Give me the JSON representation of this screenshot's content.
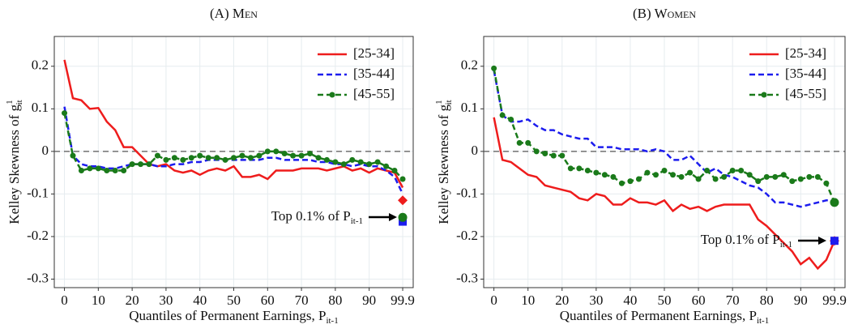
{
  "chart_data": [
    {
      "type": "line",
      "title": "(A) Men",
      "ylabel": {
        "text": "Kelley Skewness of g",
        "sup": "1",
        "sub": "it"
      },
      "xlabel": {
        "text": "Quantiles of Permanent Earnings, P",
        "sub": "it-1"
      },
      "annotation": {
        "text": "Top 0.1% of P",
        "sub": "it-1"
      },
      "x": [
        0,
        2.5,
        5,
        7.5,
        10,
        12.5,
        15,
        17.5,
        20,
        22.5,
        25,
        27.5,
        30,
        32.5,
        35,
        37.5,
        40,
        42.5,
        45,
        47.5,
        50,
        52.5,
        55,
        57.5,
        60,
        62.5,
        65,
        67.5,
        70,
        72.5,
        75,
        77.5,
        80,
        82.5,
        85,
        87.5,
        90,
        92.5,
        95,
        97.5,
        99.9
      ],
      "xlim": [
        -3,
        103
      ],
      "xticks": [
        0,
        10,
        20,
        30,
        40,
        50,
        60,
        70,
        80,
        90,
        99.9
      ],
      "ylim": [
        -0.32,
        0.27
      ],
      "yticks": [
        -0.3,
        -0.2,
        -0.1,
        0,
        0.1,
        0.2
      ],
      "grid": true,
      "hline": 0,
      "legend": "top-right",
      "series": [
        {
          "name": "[25-34]",
          "color": "#ee1c1c",
          "dash": false,
          "points": false,
          "marker": "diamond",
          "top": -0.115,
          "values": [
            0.215,
            0.125,
            0.12,
            0.1,
            0.102,
            0.07,
            0.05,
            0.01,
            0.01,
            -0.01,
            -0.03,
            -0.035,
            -0.03,
            -0.045,
            -0.05,
            -0.045,
            -0.055,
            -0.045,
            -0.04,
            -0.045,
            -0.035,
            -0.06,
            -0.06,
            -0.055,
            -0.065,
            -0.045,
            -0.045,
            -0.045,
            -0.04,
            -0.04,
            -0.04,
            -0.045,
            -0.04,
            -0.035,
            -0.045,
            -0.04,
            -0.05,
            -0.04,
            -0.045,
            -0.05,
            -0.085
          ]
        },
        {
          "name": "[35-44]",
          "color": "#1c1cee",
          "dash": true,
          "points": false,
          "marker": "square",
          "top": -0.165,
          "values": [
            0.105,
            -0.01,
            -0.03,
            -0.035,
            -0.035,
            -0.04,
            -0.04,
            -0.035,
            -0.03,
            -0.03,
            -0.03,
            -0.035,
            -0.035,
            -0.03,
            -0.03,
            -0.025,
            -0.025,
            -0.02,
            -0.02,
            -0.02,
            -0.02,
            -0.02,
            -0.02,
            -0.02,
            -0.015,
            -0.015,
            -0.02,
            -0.02,
            -0.02,
            -0.02,
            -0.025,
            -0.025,
            -0.03,
            -0.03,
            -0.035,
            -0.03,
            -0.035,
            -0.035,
            -0.045,
            -0.06,
            -0.1
          ]
        },
        {
          "name": "[45-55]",
          "color": "#1a7a1a",
          "dash": true,
          "points": true,
          "marker": "circle",
          "top": -0.155,
          "values": [
            0.09,
            -0.01,
            -0.045,
            -0.04,
            -0.04,
            -0.045,
            -0.045,
            -0.045,
            -0.03,
            -0.03,
            -0.03,
            -0.01,
            -0.02,
            -0.015,
            -0.02,
            -0.015,
            -0.01,
            -0.015,
            -0.015,
            -0.02,
            -0.015,
            -0.01,
            -0.015,
            -0.01,
            0,
            0,
            -0.005,
            -0.01,
            -0.01,
            -0.005,
            -0.015,
            -0.02,
            -0.025,
            -0.03,
            -0.02,
            -0.025,
            -0.03,
            -0.025,
            -0.035,
            -0.045,
            -0.065
          ]
        }
      ]
    },
    {
      "type": "line",
      "title": "(B) Women",
      "ylabel": {
        "text": "Kelley Skewness of g",
        "sup": "1",
        "sub": "it"
      },
      "xlabel": {
        "text": "Quantiles of Permanent Earnings, P",
        "sub": "it-1"
      },
      "annotation": {
        "text": "Top 0.1% of P",
        "sub": "it-1"
      },
      "x": [
        0,
        2.5,
        5,
        7.5,
        10,
        12.5,
        15,
        17.5,
        20,
        22.5,
        25,
        27.5,
        30,
        32.5,
        35,
        37.5,
        40,
        42.5,
        45,
        47.5,
        50,
        52.5,
        55,
        57.5,
        60,
        62.5,
        65,
        67.5,
        70,
        72.5,
        75,
        77.5,
        80,
        82.5,
        85,
        87.5,
        90,
        92.5,
        95,
        97.5,
        99.9
      ],
      "xlim": [
        -3,
        103
      ],
      "xticks": [
        0,
        10,
        20,
        30,
        40,
        50,
        60,
        70,
        80,
        90,
        99.9
      ],
      "ylim": [
        -0.32,
        0.27
      ],
      "yticks": [
        -0.3,
        -0.2,
        -0.1,
        0,
        0.1,
        0.2
      ],
      "grid": true,
      "hline": 0,
      "legend": "top-right",
      "series": [
        {
          "name": "[25-34]",
          "color": "#ee1c1c",
          "dash": false,
          "points": false,
          "marker": "diamond",
          "top": -0.21,
          "values": [
            0.08,
            -0.02,
            -0.025,
            -0.04,
            -0.055,
            -0.06,
            -0.08,
            -0.085,
            -0.09,
            -0.095,
            -0.11,
            -0.115,
            -0.1,
            -0.105,
            -0.125,
            -0.125,
            -0.11,
            -0.12,
            -0.12,
            -0.125,
            -0.115,
            -0.14,
            -0.125,
            -0.135,
            -0.13,
            -0.14,
            -0.13,
            -0.125,
            -0.125,
            -0.125,
            -0.125,
            -0.16,
            -0.175,
            -0.195,
            -0.215,
            -0.235,
            -0.265,
            -0.25,
            -0.275,
            -0.255,
            -0.21
          ]
        },
        {
          "name": "[35-44]",
          "color": "#1c1cee",
          "dash": true,
          "points": false,
          "marker": "square",
          "top": -0.21,
          "values": [
            0.19,
            0.085,
            0.07,
            0.07,
            0.075,
            0.06,
            0.05,
            0.05,
            0.04,
            0.035,
            0.03,
            0.03,
            0.01,
            0.01,
            0.01,
            0.005,
            0.005,
            0.005,
            0,
            0.005,
            0,
            -0.02,
            -0.02,
            -0.01,
            -0.03,
            -0.05,
            -0.04,
            -0.055,
            -0.06,
            -0.07,
            -0.08,
            -0.085,
            -0.1,
            -0.12,
            -0.12,
            -0.125,
            -0.13,
            -0.125,
            -0.12,
            -0.115,
            -0.115
          ]
        },
        {
          "name": "[45-55]",
          "color": "#1a7a1a",
          "dash": true,
          "points": true,
          "marker": "circle",
          "top": -0.12,
          "values": [
            0.195,
            0.085,
            0.075,
            0.02,
            0.02,
            0,
            -0.005,
            -0.01,
            -0.01,
            -0.04,
            -0.04,
            -0.045,
            -0.05,
            -0.055,
            -0.06,
            -0.075,
            -0.07,
            -0.065,
            -0.05,
            -0.055,
            -0.045,
            -0.055,
            -0.06,
            -0.05,
            -0.065,
            -0.045,
            -0.065,
            -0.06,
            -0.045,
            -0.045,
            -0.055,
            -0.07,
            -0.06,
            -0.06,
            -0.055,
            -0.07,
            -0.065,
            -0.06,
            -0.06,
            -0.075,
            -0.12
          ]
        }
      ]
    }
  ]
}
